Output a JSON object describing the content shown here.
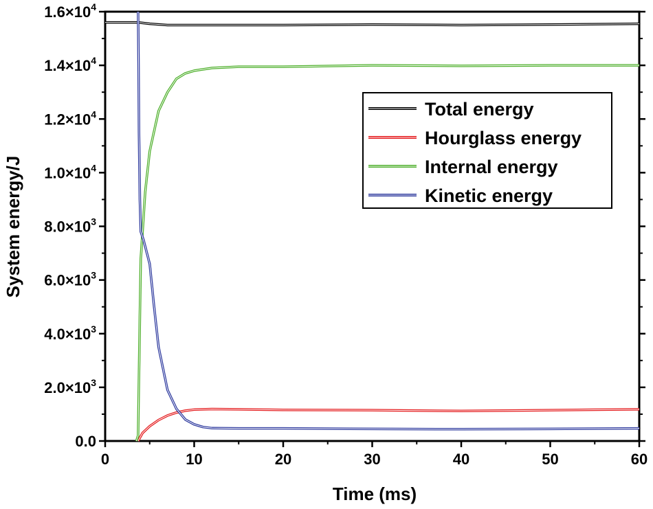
{
  "chart_data": {
    "type": "line",
    "title": "",
    "xlabel": "Time (ms)",
    "ylabel": "System energy/J",
    "xlim": [
      0,
      60
    ],
    "ylim": [
      0,
      16000
    ],
    "x_ticks": [
      0,
      10,
      20,
      30,
      40,
      50,
      60
    ],
    "x_tick_labels": [
      "0",
      "10",
      "20",
      "30",
      "40",
      "50",
      "60"
    ],
    "y_ticks": [
      0,
      2000,
      4000,
      6000,
      8000,
      10000,
      12000,
      14000,
      16000
    ],
    "y_tick_labels": [
      {
        "mantissa": "0.0",
        "exp": ""
      },
      {
        "mantissa": "2.0×10",
        "exp": "3"
      },
      {
        "mantissa": "4.0×10",
        "exp": "3"
      },
      {
        "mantissa": "6.0×10",
        "exp": "3"
      },
      {
        "mantissa": "8.0×10",
        "exp": "3"
      },
      {
        "mantissa": "1.0×10",
        "exp": "4"
      },
      {
        "mantissa": "1.2×10",
        "exp": "4"
      },
      {
        "mantissa": "1.4×10",
        "exp": "4"
      },
      {
        "mantissa": "1.6×10",
        "exp": "4"
      }
    ],
    "legend_position": "top-right",
    "series": [
      {
        "name": "Total energy",
        "color": "#000000",
        "x": [
          0,
          2,
          3.7,
          5,
          7,
          10,
          15,
          20,
          30,
          40,
          50,
          60
        ],
        "y": [
          15600,
          15600,
          15600,
          15550,
          15500,
          15500,
          15500,
          15500,
          15520,
          15500,
          15520,
          15550
        ]
      },
      {
        "name": "Hourglass energy",
        "color": "#e41a1c",
        "x": [
          3.7,
          4.2,
          5,
          6,
          7,
          8,
          9,
          10,
          12,
          15,
          20,
          30,
          40,
          50,
          60
        ],
        "y": [
          0,
          300,
          550,
          780,
          950,
          1060,
          1130,
          1170,
          1190,
          1180,
          1160,
          1150,
          1120,
          1150,
          1180
        ]
      },
      {
        "name": "Internal energy",
        "color": "#4daf2a",
        "x": [
          3.5,
          3.7,
          3.8,
          4,
          4.5,
          5,
          6,
          7,
          8,
          9,
          10,
          12,
          15,
          20,
          30,
          40,
          50,
          60
        ],
        "y": [
          0,
          200,
          2500,
          6800,
          9300,
          10800,
          12300,
          13000,
          13500,
          13700,
          13800,
          13900,
          13950,
          13950,
          14000,
          13980,
          14000,
          14000
        ]
      },
      {
        "name": "Kinetic energy",
        "color": "#2e3a9e",
        "x": [
          3.7,
          3.75,
          3.8,
          3.9,
          4,
          4.3,
          5,
          5.5,
          6,
          7,
          8,
          9,
          10,
          11,
          12,
          15,
          20,
          30,
          40,
          50,
          60
        ],
        "y": [
          16000,
          14000,
          11500,
          9000,
          7800,
          7500,
          6600,
          5000,
          3500,
          1900,
          1200,
          800,
          620,
          520,
          480,
          470,
          470,
          450,
          440,
          450,
          470
        ]
      }
    ]
  }
}
